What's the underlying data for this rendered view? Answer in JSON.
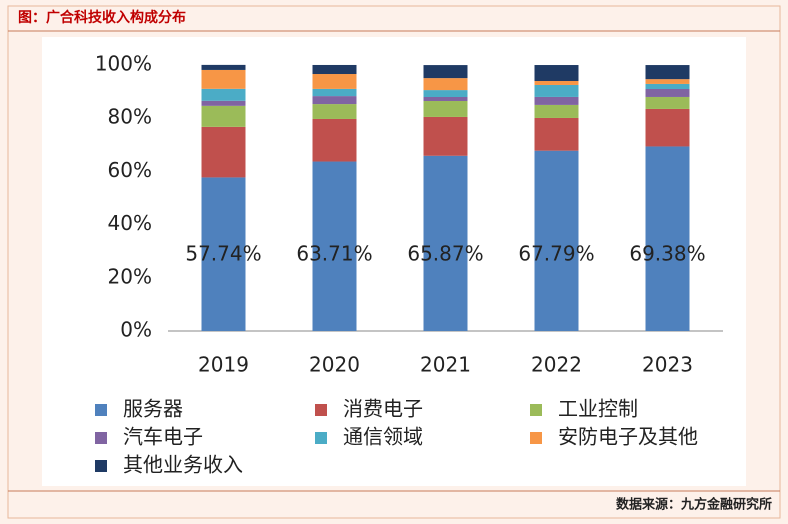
{
  "header": "图：广合科技收入构成分布",
  "source": "数据来源：九方金融研究所",
  "chart_data": {
    "type": "stacked_bar",
    "categories": [
      "2019",
      "2020",
      "2021",
      "2022",
      "2023"
    ],
    "series": [
      {
        "name": "服务器",
        "color": "#4f81bd",
        "values": [
          57.74,
          63.71,
          65.87,
          67.79,
          69.38
        ],
        "value_labels": [
          "57.74%",
          "63.71%",
          "65.87%",
          "67.79%",
          "69.38%"
        ]
      },
      {
        "name": "消费电子",
        "color": "#c0504d",
        "values": [
          19.0,
          16.0,
          14.6,
          12.3,
          14.1
        ]
      },
      {
        "name": "工业控制",
        "color": "#9bbb59",
        "values": [
          7.9,
          5.6,
          6.0,
          4.9,
          4.5
        ]
      },
      {
        "name": "汽车电子",
        "color": "#8064a2",
        "values": [
          1.9,
          3.0,
          1.5,
          3.0,
          3.0
        ]
      },
      {
        "name": "通信领域",
        "color": "#4bacc6",
        "values": [
          4.5,
          2.7,
          2.6,
          4.5,
          1.9
        ]
      },
      {
        "name": "安防电子及其他",
        "color": "#f79646",
        "values": [
          7.1,
          5.6,
          4.5,
          1.5,
          1.8
        ]
      },
      {
        "name": "其他业务收入",
        "color": "#1f3a64",
        "values": [
          1.9,
          3.4,
          4.9,
          6.0,
          5.3
        ]
      }
    ],
    "ylim": [
      0,
      100
    ],
    "yticks": [
      {
        "value": 0,
        "label": "0%"
      },
      {
        "value": 20,
        "label": "20%"
      },
      {
        "value": 40,
        "label": "40%"
      },
      {
        "value": 60,
        "label": "60%"
      },
      {
        "value": 80,
        "label": "80%"
      },
      {
        "value": 100,
        "label": "100%"
      }
    ],
    "grid": false
  }
}
